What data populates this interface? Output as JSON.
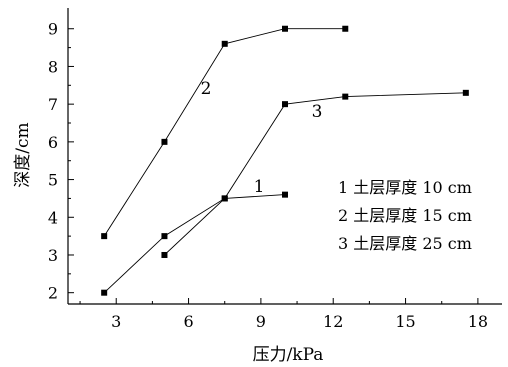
{
  "chart_data": {
    "type": "line",
    "xlabel": "压力/kPa",
    "ylabel": "深度/cm",
    "xlim": [
      1,
      19
    ],
    "ylim": [
      1.7,
      9.55
    ],
    "xticks": [
      3,
      6,
      9,
      12,
      15,
      18
    ],
    "yticks": [
      2,
      3,
      4,
      5,
      6,
      7,
      8,
      9
    ],
    "grid": false,
    "legend_position": "right",
    "marker": "square",
    "series": [
      {
        "name": "1",
        "legend_label": "1 土层厚度 10 cm",
        "x": [
          2.5,
          5,
          7.5,
          10
        ],
        "y": [
          2,
          3.5,
          4.5,
          4.6
        ]
      },
      {
        "name": "2",
        "legend_label": "2 土层厚度 15 cm",
        "x": [
          2.5,
          5,
          7.5,
          10,
          12.5
        ],
        "y": [
          3.5,
          6,
          8.6,
          9,
          9
        ]
      },
      {
        "name": "3",
        "legend_label": "3 土层厚度 25 cm",
        "x": [
          5,
          7.5,
          10,
          12.5,
          17.5
        ],
        "y": [
          3,
          4.5,
          7,
          7.2,
          7.3
        ]
      }
    ]
  }
}
